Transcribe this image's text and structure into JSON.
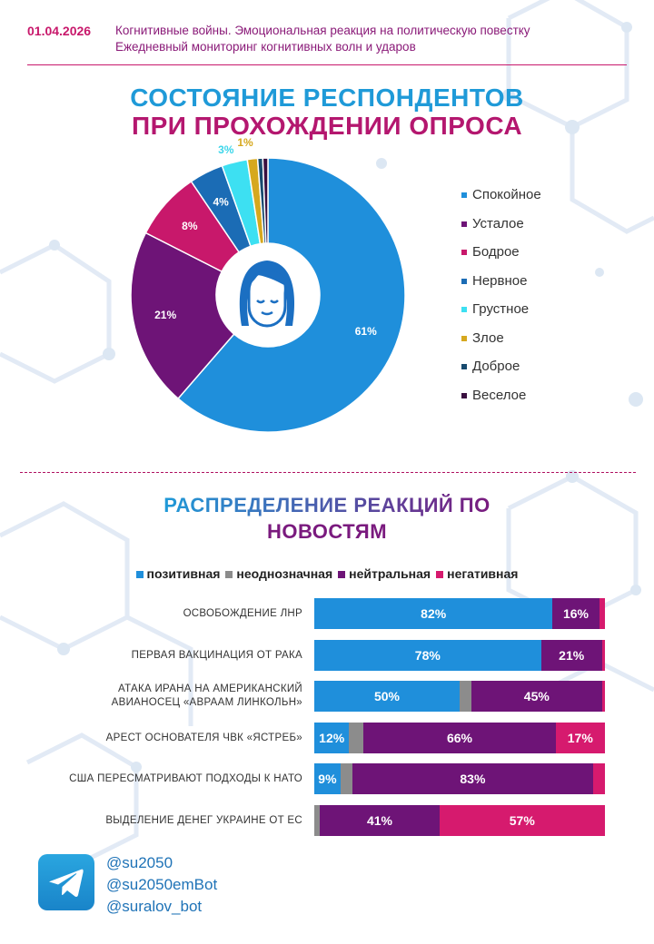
{
  "header": {
    "date": "01.04.2026",
    "subtitle_line1": "Когнитивные войны. Эмоциональная реакция на политическую повестку",
    "subtitle_line2": "Ежедневный мониторинг когнитивных волн и ударов"
  },
  "section1": {
    "title_line1": "СОСТОЯНИЕ РЕСПОНДЕНТОВ",
    "title_line2": "ПРИ ПРОХОЖДЕНИИ ОПРОСА"
  },
  "section2": {
    "title_line1": "РАСПРЕДЕЛЕНИЕ РЕАКЦИЙ ПО",
    "title_line2": "НОВОСТЯМ"
  },
  "footer": {
    "handles": [
      "@su2050",
      "@su2050emBot",
      "@suralov_bot"
    ]
  },
  "colors": {
    "pink": "#c8186b",
    "purple": "#7a1a7e",
    "blue": "#1f8fdb"
  },
  "chart_data": [
    {
      "type": "pie",
      "title": "СОСТОЯНИЕ РЕСПОНДЕНТОВ ПРИ ПРОХОЖДЕНИИ ОПРОСА",
      "legend_position": "right",
      "slices": [
        {
          "label": "Спокойное",
          "value": 61,
          "display": "61%",
          "color": "#1f8fdb"
        },
        {
          "label": "Усталое",
          "value": 21,
          "display": "21%",
          "color": "#6e1477"
        },
        {
          "label": "Бодрое",
          "value": 8,
          "display": "8%",
          "color": "#c8186b"
        },
        {
          "label": "Нервное",
          "value": 4,
          "display": "4%",
          "color": "#1b6cb5"
        },
        {
          "label": "Грустное",
          "value": 3,
          "display": "3%",
          "color": "#3de0f2"
        },
        {
          "label": "Злое",
          "value": 1.2,
          "display": "1%",
          "color": "#d6a81e"
        },
        {
          "label": "Доброе",
          "value": 0.6,
          "display": "",
          "color": "#174a6e"
        },
        {
          "label": "Веселое",
          "value": 0.6,
          "display": "",
          "color": "#3a1040"
        }
      ]
    },
    {
      "type": "bar",
      "orientation": "horizontal",
      "stacked": true,
      "title": "РАСПРЕДЕЛЕНИЕ РЕАКЦИЙ ПО НОВОСТЯМ",
      "legend_position": "top",
      "series_legend": [
        {
          "name": "позитивная",
          "color": "#1f8fdb"
        },
        {
          "name": "неоднозначная",
          "color": "#8c8c8c"
        },
        {
          "name": "нейтральная",
          "color": "#6e1477"
        },
        {
          "name": "негативная",
          "color": "#d61a6e"
        }
      ],
      "rows": [
        {
          "label_lines": [
            "ОСВОБОЖДЕНИЕ ЛНР"
          ],
          "values": [
            82,
            0,
            16,
            2
          ],
          "labels": [
            "82%",
            "",
            "16%",
            ""
          ]
        },
        {
          "label_lines": [
            "ПЕРВАЯ ВАКЦИНАЦИЯ ОТ РАКА"
          ],
          "values": [
            78,
            0,
            21,
            1
          ],
          "labels": [
            "78%",
            "",
            "21%",
            ""
          ]
        },
        {
          "label_lines": [
            "АТАКА ИРАНА НА АМЕРИКАНСКИЙ",
            "АВИАНОСЕЦ «АВРААМ ЛИНКОЛЬН»"
          ],
          "values": [
            50,
            4,
            45,
            1
          ],
          "labels": [
            "50%",
            "",
            "45%",
            ""
          ]
        },
        {
          "label_lines": [
            "АРЕСТ ОСНОВАТЕЛЯ ЧВК «ЯСТРЕБ»"
          ],
          "values": [
            12,
            5,
            66,
            17
          ],
          "labels": [
            "12%",
            "",
            "66%",
            "17%"
          ]
        },
        {
          "label_lines": [
            "США ПЕРЕСМАТРИВАЮТ ПОДХОДЫ К НАТО"
          ],
          "values": [
            9,
            4,
            83,
            4
          ],
          "labels": [
            "9%",
            "",
            "83%",
            ""
          ]
        },
        {
          "label_lines": [
            "ВЫДЕЛЕНИЕ ДЕНЕГ УКРАИНЕ ОТ ЕС"
          ],
          "values": [
            0,
            2,
            41,
            57
          ],
          "labels": [
            "",
            "",
            "41%",
            "57%"
          ]
        }
      ]
    }
  ]
}
